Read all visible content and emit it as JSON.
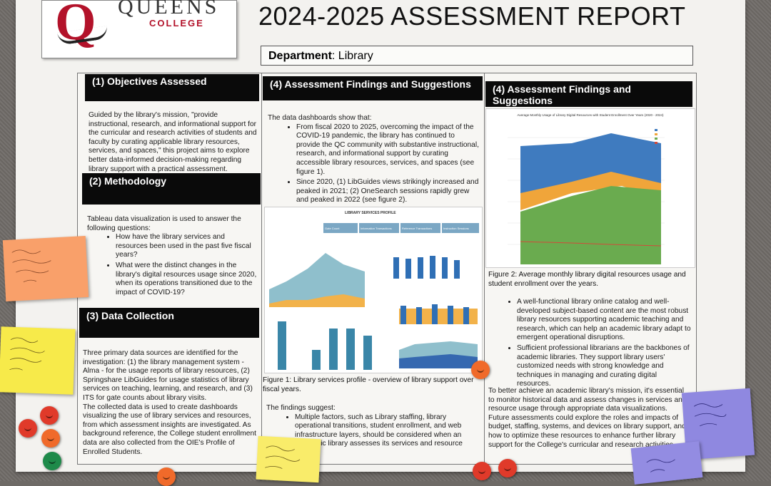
{
  "logo": {
    "letter": "Q",
    "name": "QUEENS",
    "sub": "COLLEGE"
  },
  "title": "2024-2025 ASSESSMENT REPORT",
  "department": {
    "label": "Department",
    "value": "Library"
  },
  "col1": {
    "h1": "(1) Objectives Assessed",
    "p1": "Guided by the library's mission, \"provide instructional, research, and informational support for the curricular and research activities of students and faculty by curating applicable library resources, services, and spaces,\" this project aims to explore better data-informed decision-making regarding library support with a practical assessment.",
    "h2": "(2) Methodology",
    "p2": "Tableau data visualization is used to answer the following questions:",
    "q1": "How have the library services and resources been used in the past five fiscal years?",
    "q2": "What were the distinct changes in the library's digital resources usage since 2020, when its operations transitioned due to the impact of COVID-19?",
    "h3": "(3) Data Collection",
    "p3": "Three primary data sources are identified for the investigation: (1) the library management system - Alma - for the usage reports of library resources, (2) Springshare LibGuides for usage statistics of library services on teaching, learning, and research, and (3) ITS for gate counts about library visits.",
    "p4": "The collected data is used to create dashboards visualizing the use of library services and resources, from which assessment insights are investigated. As background reference, the College student enrollment data are also collected from the OIE's Profile of Enrolled Students."
  },
  "col2": {
    "h": "(4) Assessment Findings and Suggestions",
    "p1": "The data dashboards show that:",
    "b1": "From fiscal 2020 to 2025, overcoming the impact of the COVID-19 pandemic, the library has continued to provide the QC community with substantive instructional, research, and informational support by curating accessible library resources, services, and spaces (see figure 1).",
    "b2": "Since 2020, (1) LibGuides views strikingly increased and peaked in 2021; (2) OneSearch sessions rapidly grew and peaked in 2022 (see figure 2).",
    "dash_title": "LIBRARY SERVICES PROFILE",
    "dash_kpis": [
      "Gate Count",
      "Information Transactions",
      "Reference Transactions",
      "Instruction Sessions"
    ],
    "cap": "Figure 1: Library services profile - overview of library support over fiscal years.",
    "p2": "The findings suggest:",
    "b3": "Multiple factors, such as Library staffing, library operational transitions, student enrollment, and web infrastructure layers, should be considered when an academic library assesses its services and resource usage."
  },
  "col3": {
    "h": "(4) Assessment Findings and Suggestions",
    "chart_title": "Average Monthly Usage of Library Digital Resources with Student Enrollment Over Years (2020 - 2024)",
    "cap": "Figure 2: Average monthly library digital resources usage and student enrollment over the years.",
    "b1": "A well-functional library online catalog and well-developed subject-based content are the most robust library resources supporting academic teaching and research, which can help an academic library adapt to emergent operational disruptions.",
    "b2": "Sufficient professional librarians are the backbones of academic libraries. They support library users' customized needs with strong knowledge and techniques in managing and curating digital resources.",
    "p": "To better achieve an academic library's mission, it's essential to monitor historical data and assess changes in services and resource usage through appropriate data visualizations. Future assessments could explore the roles and impacts of budget, staffing, systems, and devices on library support, and how to optimize these resources to enhance further library support for the College's curricular and research activities."
  },
  "colors": {
    "blue": "#3f7bbf",
    "orange": "#f0a53a",
    "green": "#6aab4f",
    "teal": "#6fa8b8",
    "red": "#d24a3a"
  }
}
